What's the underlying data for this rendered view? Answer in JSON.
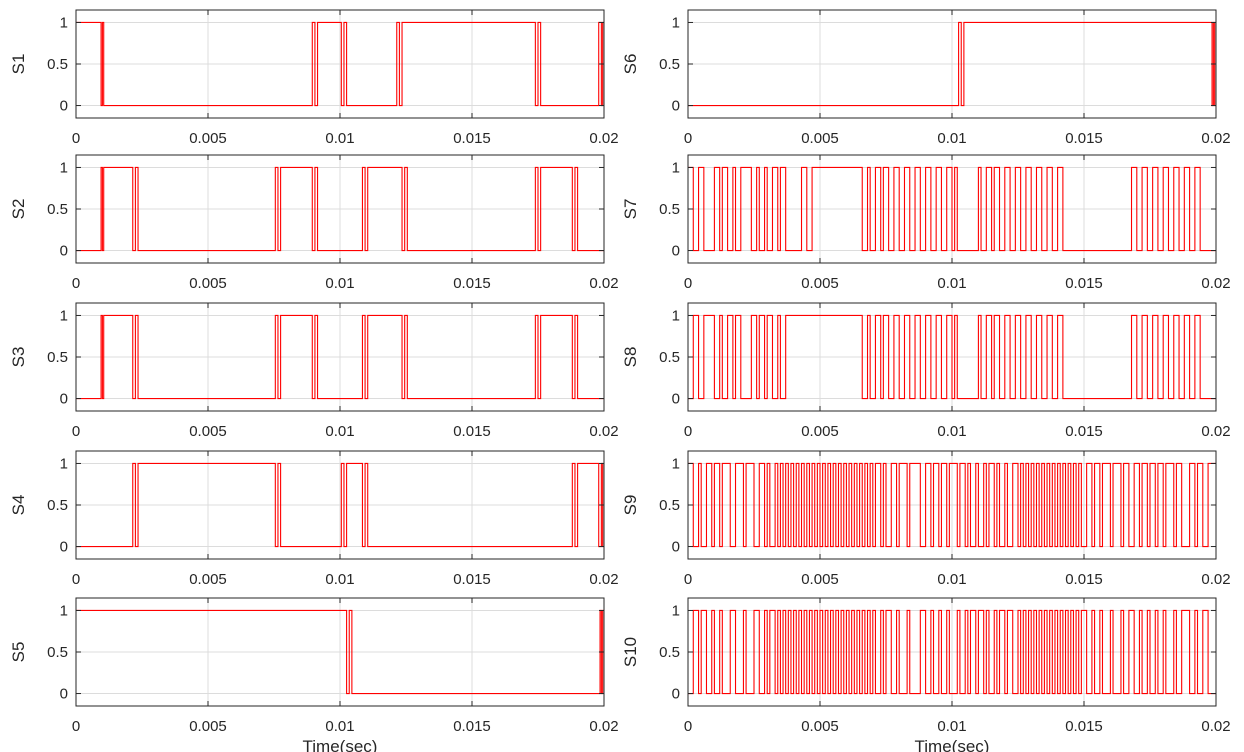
{
  "chart_data": {
    "type": "line",
    "layout": "step",
    "xlim": [
      0,
      0.02
    ],
    "ylim": [
      -0.15,
      1.15
    ],
    "x_ticks": [
      "0",
      "0.005",
      "0.01",
      "0.015",
      "0.02"
    ],
    "y_ticks": [
      "0",
      "0.5",
      "1"
    ],
    "xlabel": "Time(sec)",
    "grid": true,
    "line_color": "#ff0000",
    "panels": [
      {
        "ylabel": "S1",
        "initial": 1,
        "toggles": [
          0.00095,
          0.001,
          0.00105,
          0.00895,
          0.00905,
          0.00915,
          0.01005,
          0.01015,
          0.01025,
          0.01215,
          0.01225,
          0.01235,
          0.0174,
          0.0175,
          0.0176,
          0.0198,
          0.0199,
          0.01995
        ]
      },
      {
        "ylabel": "S2",
        "initial": 0,
        "toggles": [
          0.00095,
          0.001,
          0.00105,
          0.00215,
          0.00225,
          0.00235,
          0.00755,
          0.00765,
          0.00775,
          0.00895,
          0.00905,
          0.00915,
          0.01085,
          0.01095,
          0.01105,
          0.01235,
          0.01245,
          0.01255,
          0.0174,
          0.0175,
          0.0176,
          0.0188,
          0.0189,
          0.019
        ]
      },
      {
        "ylabel": "S3",
        "initial": 0,
        "toggles": [
          0.00095,
          0.001,
          0.00105,
          0.00215,
          0.00225,
          0.00235,
          0.00755,
          0.00765,
          0.00775,
          0.00895,
          0.00905,
          0.00915,
          0.01085,
          0.01095,
          0.01105,
          0.01235,
          0.01245,
          0.01255,
          0.0174,
          0.0175,
          0.0176,
          0.0188,
          0.0189,
          0.019
        ]
      },
      {
        "ylabel": "S4",
        "initial": 0,
        "toggles": [
          0.00215,
          0.00225,
          0.00235,
          0.00755,
          0.00765,
          0.00775,
          0.01005,
          0.01015,
          0.01025,
          0.01085,
          0.01095,
          0.01105,
          0.0188,
          0.0189,
          0.019,
          0.0198,
          0.0199,
          0.01995
        ]
      },
      {
        "ylabel": "S5",
        "initial": 1,
        "toggles": [
          0.01025,
          0.01035,
          0.01045,
          0.01985,
          0.0199,
          0.01995
        ]
      },
      {
        "ylabel": "S6",
        "initial": 0,
        "toggles": [
          0.01025,
          0.01035,
          0.01045,
          0.01985,
          0.0199,
          0.01995
        ]
      },
      {
        "ylabel": "S7",
        "initial": 1,
        "toggles": [
          0.0002,
          0.0004,
          0.0006,
          0.001,
          0.0012,
          0.0013,
          0.0015,
          0.0017,
          0.0018,
          0.002,
          0.0024,
          0.0026,
          0.0027,
          0.0029,
          0.003,
          0.0032,
          0.0034,
          0.0035,
          0.0037,
          0.0043,
          0.0045,
          0.0047,
          0.0066,
          0.0068,
          0.0069,
          0.0071,
          0.0073,
          0.0074,
          0.0076,
          0.0078,
          0.008,
          0.0082,
          0.0084,
          0.0086,
          0.0088,
          0.009,
          0.0092,
          0.0094,
          0.0096,
          0.0098,
          0.01,
          0.0101,
          0.0102,
          0.011,
          0.0111,
          0.0113,
          0.0115,
          0.0116,
          0.0118,
          0.012,
          0.0122,
          0.0124,
          0.0126,
          0.0128,
          0.013,
          0.0132,
          0.0134,
          0.0136,
          0.0138,
          0.014,
          0.0142,
          0.0168,
          0.017,
          0.0172,
          0.0174,
          0.0176,
          0.0178,
          0.018,
          0.0182,
          0.0184,
          0.0186,
          0.0188,
          0.019,
          0.0192,
          0.0194
        ]
      },
      {
        "ylabel": "S8",
        "initial": 0,
        "toggles": [
          0.0002,
          0.0004,
          0.0006,
          0.001,
          0.0012,
          0.0013,
          0.0015,
          0.0017,
          0.0018,
          0.002,
          0.0024,
          0.0026,
          0.0027,
          0.0029,
          0.003,
          0.0032,
          0.0034,
          0.0035,
          0.0037,
          0.0066,
          0.0068,
          0.0069,
          0.0071,
          0.0073,
          0.0074,
          0.0076,
          0.0078,
          0.008,
          0.0082,
          0.0084,
          0.0086,
          0.0088,
          0.009,
          0.0092,
          0.0094,
          0.0096,
          0.0098,
          0.01,
          0.0101,
          0.0102,
          0.011,
          0.0111,
          0.0113,
          0.0115,
          0.0116,
          0.0118,
          0.012,
          0.0122,
          0.0124,
          0.0126,
          0.0128,
          0.013,
          0.0132,
          0.0134,
          0.0136,
          0.0138,
          0.014,
          0.0142,
          0.0168,
          0.017,
          0.0172,
          0.0174,
          0.0176,
          0.0178,
          0.018,
          0.0182,
          0.0184,
          0.0186,
          0.0188,
          0.019,
          0.0192,
          0.0194
        ]
      },
      {
        "ylabel": "S9",
        "initial": 1,
        "toggles": [
          0.0002,
          0.0004,
          0.0005,
          0.0007,
          0.0009,
          0.001,
          0.0012,
          0.0013,
          0.0016,
          0.0018,
          0.0021,
          0.0022,
          0.0025,
          0.0027,
          0.0029,
          0.003,
          0.0031,
          0.0033,
          0.0034,
          0.0035,
          0.0036,
          0.0037,
          0.0038,
          0.0039,
          0.004,
          0.0041,
          0.0042,
          0.0043,
          0.0044,
          0.0045,
          0.0046,
          0.0047,
          0.0048,
          0.0049,
          0.005,
          0.0051,
          0.0052,
          0.0053,
          0.0054,
          0.0055,
          0.0056,
          0.0057,
          0.0058,
          0.0059,
          0.006,
          0.0061,
          0.0062,
          0.0063,
          0.0064,
          0.0065,
          0.0066,
          0.0067,
          0.0068,
          0.0069,
          0.007,
          0.0071,
          0.0073,
          0.0074,
          0.0075,
          0.0077,
          0.0079,
          0.008,
          0.0083,
          0.0084,
          0.0088,
          0.009,
          0.0092,
          0.0093,
          0.0095,
          0.0096,
          0.0098,
          0.0099,
          0.0102,
          0.0103,
          0.0105,
          0.0106,
          0.0107,
          0.0109,
          0.011,
          0.0112,
          0.0113,
          0.0114,
          0.0116,
          0.0117,
          0.0118,
          0.012,
          0.0121,
          0.0123,
          0.0125,
          0.0126,
          0.0127,
          0.0128,
          0.0129,
          0.013,
          0.0131,
          0.0132,
          0.0133,
          0.0134,
          0.0135,
          0.0136,
          0.0137,
          0.0138,
          0.0139,
          0.014,
          0.0141,
          0.0142,
          0.0143,
          0.0144,
          0.0145,
          0.0146,
          0.0147,
          0.0148,
          0.0149,
          0.0151,
          0.0153,
          0.0154,
          0.0156,
          0.0157,
          0.016,
          0.0161,
          0.0164,
          0.0165,
          0.0167,
          0.0169,
          0.0171,
          0.0172,
          0.0174,
          0.0175,
          0.0177,
          0.0178,
          0.018,
          0.0181,
          0.0184,
          0.0185,
          0.0187,
          0.019,
          0.0192,
          0.0193,
          0.0195,
          0.0197
        ]
      },
      {
        "ylabel": "S10",
        "initial": 0,
        "toggles": [
          0.0002,
          0.0004,
          0.0005,
          0.0007,
          0.0009,
          0.001,
          0.0012,
          0.0013,
          0.0016,
          0.0018,
          0.0021,
          0.0022,
          0.0025,
          0.0027,
          0.0029,
          0.003,
          0.0031,
          0.0033,
          0.0034,
          0.0035,
          0.0036,
          0.0037,
          0.0038,
          0.0039,
          0.004,
          0.0041,
          0.0042,
          0.0043,
          0.0044,
          0.0045,
          0.0046,
          0.0047,
          0.0048,
          0.0049,
          0.005,
          0.0051,
          0.0052,
          0.0053,
          0.0054,
          0.0055,
          0.0056,
          0.0057,
          0.0058,
          0.0059,
          0.006,
          0.0061,
          0.0062,
          0.0063,
          0.0064,
          0.0065,
          0.0066,
          0.0067,
          0.0068,
          0.0069,
          0.007,
          0.0071,
          0.0073,
          0.0074,
          0.0075,
          0.0077,
          0.0079,
          0.008,
          0.0083,
          0.0084,
          0.0088,
          0.009,
          0.0092,
          0.0093,
          0.0095,
          0.0096,
          0.0098,
          0.0099,
          0.0102,
          0.0103,
          0.0105,
          0.0106,
          0.0107,
          0.0109,
          0.011,
          0.0112,
          0.0113,
          0.0114,
          0.0116,
          0.0117,
          0.0118,
          0.012,
          0.0121,
          0.0123,
          0.0125,
          0.0126,
          0.0127,
          0.0128,
          0.0129,
          0.013,
          0.0131,
          0.0132,
          0.0133,
          0.0134,
          0.0135,
          0.0136,
          0.0137,
          0.0138,
          0.0139,
          0.014,
          0.0141,
          0.0142,
          0.0143,
          0.0144,
          0.0145,
          0.0146,
          0.0147,
          0.0148,
          0.0149,
          0.0151,
          0.0153,
          0.0154,
          0.0156,
          0.0157,
          0.016,
          0.0161,
          0.0164,
          0.0165,
          0.0167,
          0.0169,
          0.0171,
          0.0172,
          0.0174,
          0.0175,
          0.0177,
          0.0178,
          0.018,
          0.0181,
          0.0184,
          0.0185,
          0.0187,
          0.019,
          0.0192,
          0.0193,
          0.0195,
          0.0197
        ]
      }
    ]
  }
}
